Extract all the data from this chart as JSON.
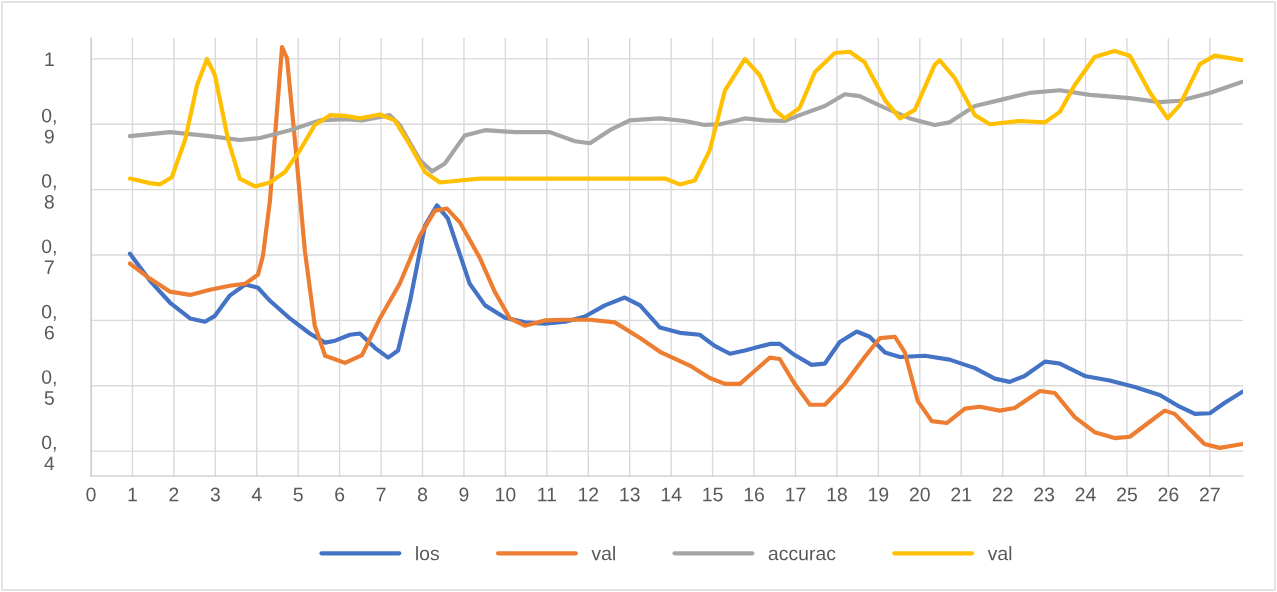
{
  "chart_data": {
    "type": "line",
    "xlim": [
      0,
      27.8
    ],
    "ylim": [
      0.362,
      1.032
    ],
    "xticks": [
      0,
      1,
      2,
      3,
      4,
      5,
      6,
      7,
      8,
      9,
      10,
      11,
      12,
      13,
      14,
      15,
      16,
      17,
      18,
      19,
      20,
      21,
      22,
      23,
      24,
      25,
      26,
      27
    ],
    "yticks": [
      {
        "value": 1,
        "label": "1"
      },
      {
        "value": 0.9,
        "label": "0,9"
      },
      {
        "value": 0.8,
        "label": "0,8"
      },
      {
        "value": 0.7,
        "label": "0,7"
      },
      {
        "value": 0.6,
        "label": "0,6"
      },
      {
        "value": 0.5,
        "label": "0,5"
      },
      {
        "value": 0.4,
        "label": "0,4"
      }
    ],
    "grid": true,
    "legend": "bottom",
    "marker": "none",
    "line_style": "solid",
    "series": [
      {
        "name": "los",
        "color": "#4472c4",
        "x": [
          0.94,
          1.42,
          1.91,
          2.39,
          2.75,
          2.99,
          3.35,
          3.72,
          4.03,
          4.32,
          4.8,
          5.28,
          5.65,
          5.89,
          6.25,
          6.49,
          6.85,
          7.17,
          7.41,
          7.7,
          8.06,
          8.35,
          8.61,
          9.14,
          9.51,
          9.99,
          10.47,
          10.95,
          11.44,
          11.92,
          12.4,
          12.88,
          13.25,
          13.73,
          14.21,
          14.69,
          15.05,
          15.42,
          15.78,
          16.38,
          16.62,
          16.98,
          17.39,
          17.71,
          18.07,
          18.48,
          18.79,
          19.16,
          19.52,
          20.12,
          20.72,
          21.33,
          21.81,
          22.17,
          22.53,
          23.02,
          23.38,
          23.98,
          24.58,
          25.19,
          25.79,
          26.27,
          26.64,
          27.0,
          27.36,
          27.79
        ],
        "values": [
          0.702,
          0.661,
          0.627,
          0.603,
          0.598,
          0.607,
          0.638,
          0.655,
          0.65,
          0.63,
          0.603,
          0.58,
          0.566,
          0.569,
          0.578,
          0.58,
          0.558,
          0.543,
          0.554,
          0.63,
          0.745,
          0.776,
          0.756,
          0.656,
          0.623,
          0.604,
          0.597,
          0.595,
          0.598,
          0.606,
          0.623,
          0.635,
          0.623,
          0.589,
          0.581,
          0.578,
          0.561,
          0.549,
          0.554,
          0.564,
          0.564,
          0.547,
          0.532,
          0.534,
          0.567,
          0.583,
          0.575,
          0.551,
          0.544,
          0.546,
          0.54,
          0.527,
          0.511,
          0.506,
          0.515,
          0.537,
          0.534,
          0.515,
          0.508,
          0.498,
          0.486,
          0.468,
          0.457,
          0.458,
          0.474,
          0.491
        ]
      },
      {
        "name": "val",
        "color": "#ed7d31",
        "x": [
          0.94,
          1.42,
          1.91,
          2.39,
          2.87,
          3.35,
          3.72,
          4.03,
          4.15,
          4.32,
          4.49,
          4.61,
          4.73,
          4.92,
          5.16,
          5.4,
          5.65,
          6.13,
          6.54,
          6.97,
          7.45,
          7.94,
          8.3,
          8.59,
          8.9,
          9.38,
          9.75,
          10.11,
          10.47,
          10.95,
          11.44,
          12.04,
          12.64,
          13.25,
          13.73,
          14.45,
          14.93,
          15.3,
          15.66,
          16.02,
          16.38,
          16.62,
          16.98,
          17.35,
          17.71,
          18.19,
          18.67,
          19.04,
          19.4,
          19.64,
          19.95,
          20.29,
          20.65,
          21.09,
          21.45,
          21.93,
          22.29,
          22.9,
          23.26,
          23.74,
          24.22,
          24.7,
          25.07,
          25.55,
          25.91,
          26.15,
          26.51,
          26.87,
          27.24,
          27.79
        ],
        "values": [
          0.687,
          0.664,
          0.644,
          0.639,
          0.647,
          0.653,
          0.656,
          0.67,
          0.699,
          0.784,
          0.922,
          1.018,
          1.001,
          0.876,
          0.707,
          0.592,
          0.546,
          0.535,
          0.547,
          0.603,
          0.656,
          0.73,
          0.768,
          0.771,
          0.75,
          0.696,
          0.643,
          0.603,
          0.592,
          0.6,
          0.601,
          0.601,
          0.597,
          0.573,
          0.552,
          0.531,
          0.512,
          0.503,
          0.503,
          0.523,
          0.543,
          0.541,
          0.503,
          0.471,
          0.471,
          0.503,
          0.544,
          0.573,
          0.575,
          0.551,
          0.477,
          0.446,
          0.443,
          0.465,
          0.468,
          0.462,
          0.466,
          0.492,
          0.489,
          0.452,
          0.429,
          0.42,
          0.422,
          0.445,
          0.462,
          0.457,
          0.434,
          0.411,
          0.405,
          0.411
        ]
      },
      {
        "name": "accurac",
        "color": "#a5a5a5",
        "x": [
          0.94,
          1.91,
          2.87,
          3.59,
          4.08,
          4.8,
          5.52,
          6.13,
          6.54,
          7.21,
          7.45,
          7.94,
          8.23,
          8.54,
          9.02,
          9.51,
          10.23,
          11.07,
          11.68,
          12.04,
          12.52,
          13.0,
          13.73,
          14.33,
          14.81,
          15.18,
          15.78,
          16.26,
          16.74,
          17.1,
          17.71,
          18.19,
          18.55,
          19.16,
          19.76,
          20.36,
          20.72,
          21.33,
          21.93,
          22.65,
          23.38,
          24.1,
          25.07,
          25.79,
          26.27,
          27.0,
          27.79
        ],
        "values": [
          0.882,
          0.888,
          0.882,
          0.876,
          0.879,
          0.891,
          0.906,
          0.908,
          0.906,
          0.914,
          0.899,
          0.845,
          0.828,
          0.84,
          0.883,
          0.891,
          0.888,
          0.888,
          0.874,
          0.871,
          0.891,
          0.906,
          0.909,
          0.905,
          0.899,
          0.9,
          0.909,
          0.906,
          0.905,
          0.914,
          0.928,
          0.946,
          0.943,
          0.925,
          0.909,
          0.899,
          0.903,
          0.928,
          0.937,
          0.948,
          0.952,
          0.945,
          0.94,
          0.934,
          0.936,
          0.948,
          0.965
        ]
      },
      {
        "name": "val",
        "color": "#ffc000",
        "x": [
          0.94,
          1.42,
          1.66,
          1.95,
          2.27,
          2.56,
          2.8,
          2.99,
          3.31,
          3.59,
          3.96,
          4.32,
          4.68,
          5.04,
          5.4,
          5.77,
          6.13,
          6.49,
          6.97,
          7.33,
          7.7,
          8.06,
          8.42,
          8.9,
          9.38,
          12.28,
          13.85,
          14.21,
          14.57,
          14.93,
          15.3,
          15.78,
          16.14,
          16.5,
          16.74,
          17.1,
          17.47,
          17.95,
          18.31,
          18.67,
          19.16,
          19.52,
          19.88,
          20.36,
          20.48,
          20.84,
          21.33,
          21.69,
          22.41,
          23.02,
          23.38,
          23.74,
          24.22,
          24.7,
          25.07,
          25.55,
          25.98,
          26.27,
          26.76,
          27.12,
          27.79
        ],
        "values": [
          0.817,
          0.81,
          0.808,
          0.819,
          0.876,
          0.96,
          1.0,
          0.975,
          0.876,
          0.817,
          0.805,
          0.811,
          0.827,
          0.86,
          0.899,
          0.914,
          0.913,
          0.909,
          0.915,
          0.906,
          0.868,
          0.827,
          0.811,
          0.814,
          0.817,
          0.817,
          0.817,
          0.808,
          0.814,
          0.86,
          0.952,
          1.0,
          0.975,
          0.922,
          0.909,
          0.925,
          0.98,
          1.009,
          1.011,
          0.995,
          0.937,
          0.909,
          0.922,
          0.991,
          0.998,
          0.971,
          0.914,
          0.9,
          0.905,
          0.903,
          0.919,
          0.96,
          1.003,
          1.012,
          1.005,
          0.949,
          0.909,
          0.929,
          0.992,
          1.005,
          0.998
        ]
      }
    ]
  }
}
